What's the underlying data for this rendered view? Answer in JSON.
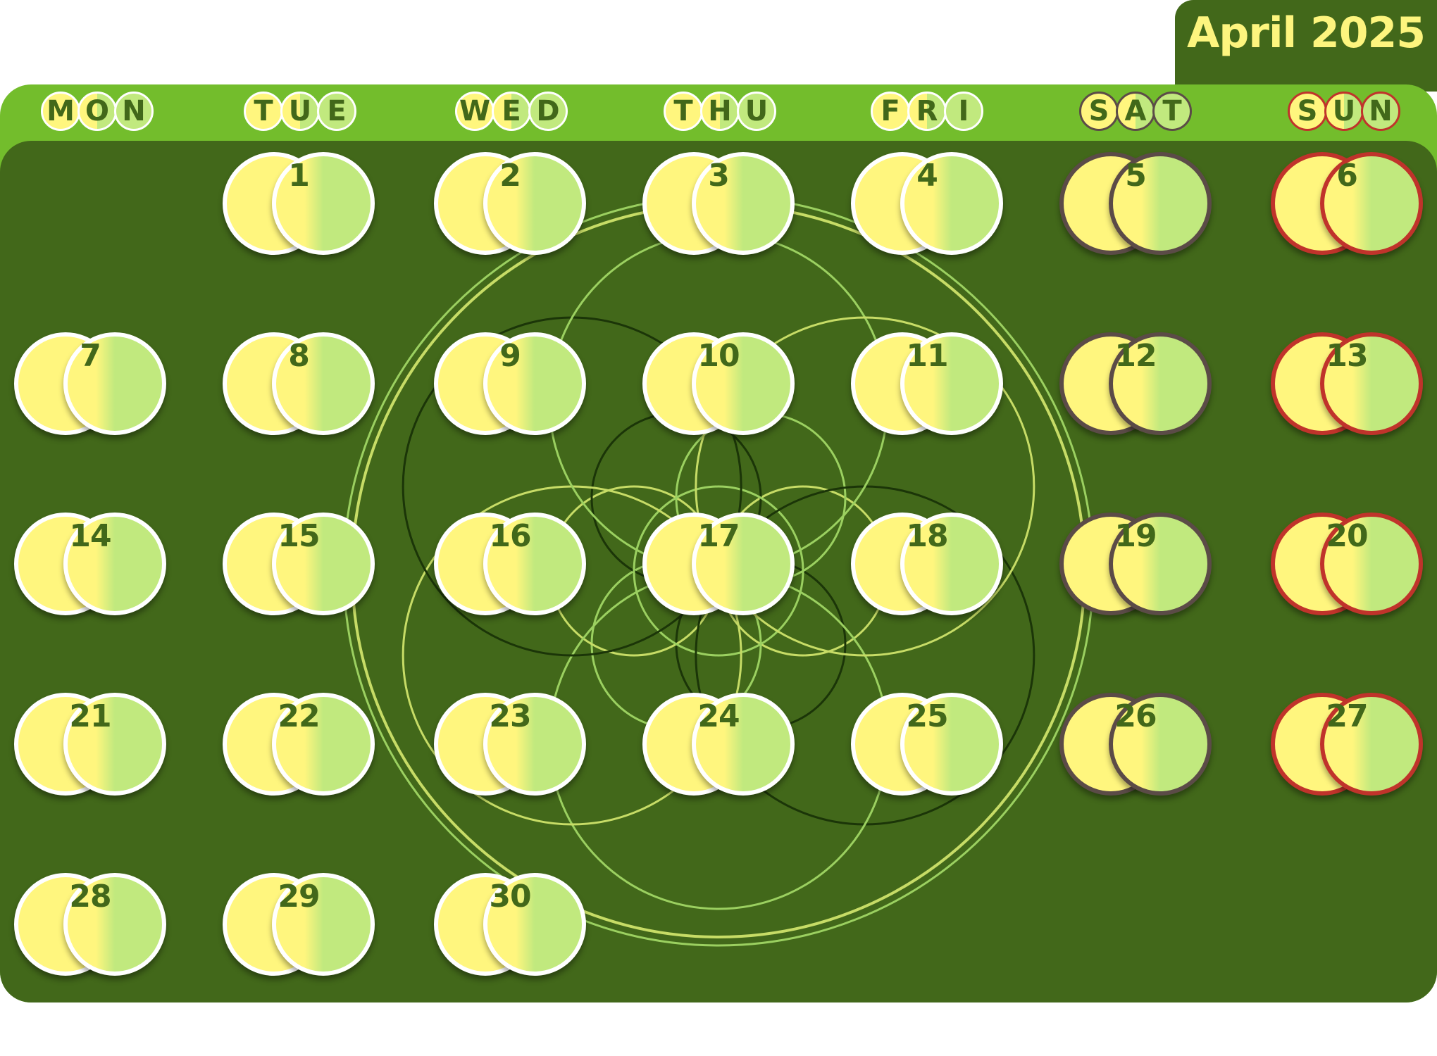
{
  "month_label": "April 2025",
  "colors": {
    "panel_dark": "#42681a",
    "header_green": "#73bd2c",
    "yellow": "#fff67e",
    "light_green": "#c1e97e",
    "saturday_border": "#5b4b47",
    "sunday_border": "#c0332b",
    "title_text": "#fdf57e"
  },
  "weekdays": [
    {
      "letters": [
        "M",
        "O",
        "N"
      ]
    },
    {
      "letters": [
        "T",
        "U",
        "E"
      ]
    },
    {
      "letters": [
        "W",
        "E",
        "D"
      ]
    },
    {
      "letters": [
        "T",
        "H",
        "U"
      ]
    },
    {
      "letters": [
        "F",
        "R",
        "I"
      ]
    },
    {
      "letters": [
        "S",
        "A",
        "T"
      ]
    },
    {
      "letters": [
        "S",
        "U",
        "N"
      ]
    }
  ],
  "days": [
    "1",
    "2",
    "3",
    "4",
    "5",
    "6",
    "7",
    "8",
    "9",
    "10",
    "11",
    "12",
    "13",
    "14",
    "15",
    "16",
    "17",
    "18",
    "19",
    "20",
    "21",
    "22",
    "23",
    "24",
    "25",
    "26",
    "27",
    "28",
    "29",
    "30"
  ]
}
